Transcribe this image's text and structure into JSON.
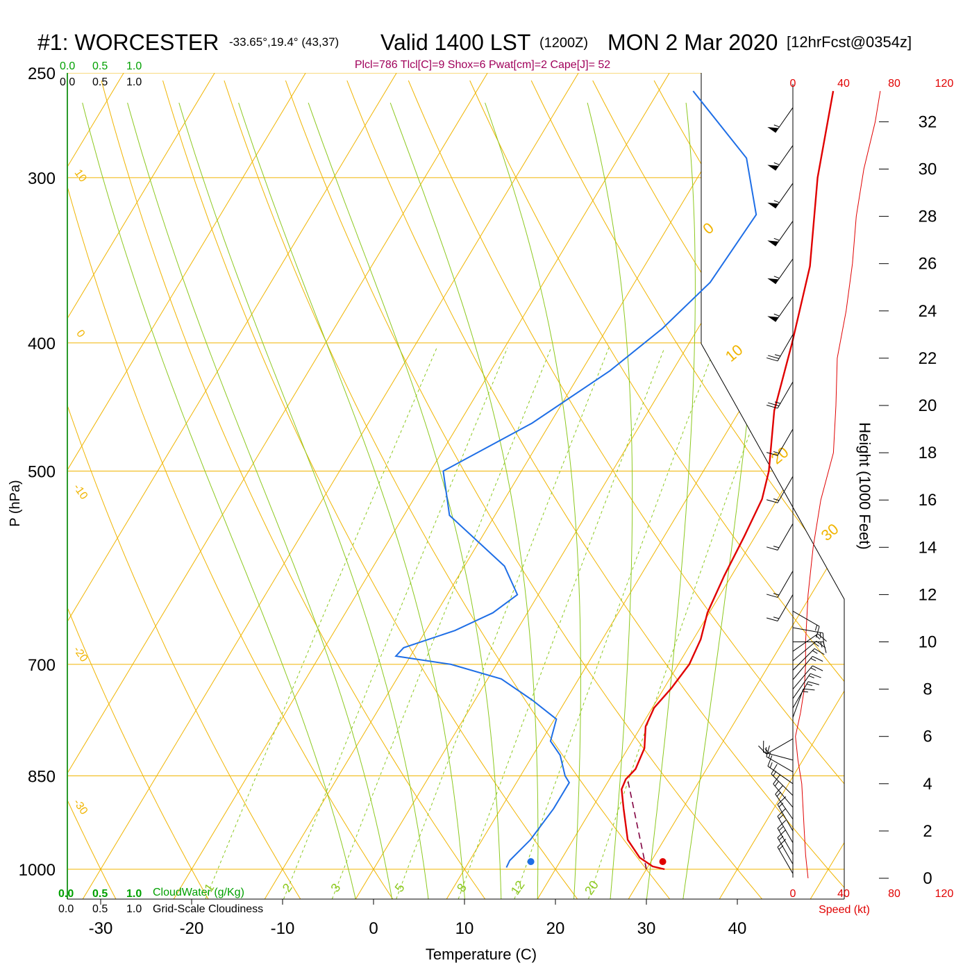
{
  "header": {
    "station": "#1: WORCESTER",
    "coords": "-33.65°,19.4° (43,37)",
    "valid": "Valid 1400 LST",
    "zulu": "(1200Z)",
    "date": "MON 2 Mar 2020",
    "forecast": "[12hrFcst@0354z]",
    "indices": "Plcl=786 Tlcl[C]=9 Shox=6 Pwat[cm]=2 Cape[J]= 52"
  },
  "scales": {
    "cloud_top_green": [
      "0.0",
      "0.5",
      "1.0"
    ],
    "cloud_top_black": [
      "0.0",
      "0.5",
      "1.0"
    ],
    "cloud_bottom_green": [
      "0.0",
      "0.5",
      "1.0"
    ],
    "cloud_bottom_black": [
      "0.0",
      "0.5",
      "1.0"
    ],
    "cloudwater_label": "CloudWater (g/Kg)",
    "cloudiness_label": "Grid-Scale Cloudiness",
    "speed_ticks_top": [
      "0",
      "40",
      "80",
      "120"
    ],
    "speed_ticks_bottom": [
      "0",
      "40",
      "80",
      "120"
    ],
    "speed_label": "Speed (kt)"
  },
  "colors": {
    "isotherm": "#f0b400",
    "adiabat": "#8cc81e",
    "mixing": "#8cc81e",
    "temperature": "#e00000",
    "dewpoint": "#1e6ee6",
    "parcel": "#800040",
    "indices": "#a0005a",
    "cloud": "#00a000",
    "speed": "#e00000"
  },
  "chart_data": {
    "type": "skew-t",
    "xlabel": "Temperature (C)",
    "ylabel": "P (hPa)",
    "height_axis_label": "Height (1000 Feet)",
    "pressure_ticks": [
      250,
      300,
      400,
      500,
      700,
      850,
      1000
    ],
    "pressure_tick_labels": [
      "250",
      "300",
      "400",
      "500",
      "700",
      "850",
      "1000"
    ],
    "temperature_ticks": [
      -30,
      -20,
      -10,
      0,
      10,
      20,
      30,
      40
    ],
    "temperature_tick_labels": [
      "-30",
      "-20",
      "-10",
      "0",
      "10",
      "20",
      "30",
      "40"
    ],
    "height_ticks_kft": [
      0,
      2,
      4,
      6,
      8,
      10,
      12,
      14,
      16,
      18,
      20,
      22,
      24,
      26,
      28,
      30,
      32
    ],
    "height_tick_labels": [
      "0",
      "2",
      "4",
      "6",
      "8",
      "10",
      "12",
      "14",
      "16",
      "18",
      "20",
      "22",
      "24",
      "26",
      "28",
      "30",
      "32"
    ],
    "isotherm_labels": [
      {
        "text": "10",
        "side": "left",
        "p": 300
      },
      {
        "text": "0",
        "side": "left",
        "p": 395
      },
      {
        "text": "-10",
        "side": "left",
        "p": 520
      },
      {
        "text": "-20",
        "side": "left",
        "p": 690
      },
      {
        "text": "-30",
        "side": "left",
        "p": 900
      },
      {
        "text": "0",
        "side": "right",
        "p": 330
      },
      {
        "text": "10",
        "side": "right",
        "p": 410
      },
      {
        "text": "20",
        "side": "right",
        "p": 490
      },
      {
        "text": "30",
        "side": "right",
        "p": 560
      }
    ],
    "mixing_ratio_labels": [
      "1",
      "2",
      "3",
      "5",
      "8",
      "12",
      "20"
    ],
    "mixing_ratio_values": [
      1,
      2,
      3,
      5,
      8,
      12,
      20
    ],
    "temperature_profile": [
      [
        1000,
        32.0
      ],
      [
        995,
        30.5
      ],
      [
        980,
        28.5
      ],
      [
        950,
        26.0
      ],
      [
        900,
        23.5
      ],
      [
        870,
        22.0
      ],
      [
        855,
        21.8
      ],
      [
        840,
        22.2
      ],
      [
        810,
        21.8
      ],
      [
        780,
        20.5
      ],
      [
        755,
        20.2
      ],
      [
        730,
        20.8
      ],
      [
        700,
        21.2
      ],
      [
        670,
        20.8
      ],
      [
        640,
        19.8
      ],
      [
        600,
        19.2
      ],
      [
        560,
        18.8
      ],
      [
        525,
        18.3
      ],
      [
        500,
        17.2
      ],
      [
        450,
        13.8
      ],
      [
        400,
        11.3
      ],
      [
        350,
        8.2
      ],
      [
        300,
        3.2
      ],
      [
        258,
        -0.8
      ]
    ],
    "dewpoint_profile": [
      [
        997,
        14.5
      ],
      [
        985,
        14.4
      ],
      [
        950,
        15.3
      ],
      [
        900,
        15.8
      ],
      [
        860,
        15.8
      ],
      [
        850,
        14.9
      ],
      [
        820,
        13.0
      ],
      [
        800,
        11.0
      ],
      [
        770,
        10.2
      ],
      [
        745,
        6.3
      ],
      [
        718,
        1.5
      ],
      [
        700,
        -5.0
      ],
      [
        690,
        -11.6
      ],
      [
        680,
        -11.3
      ],
      [
        660,
        -6.8
      ],
      [
        640,
        -3.8
      ],
      [
        620,
        -2.3
      ],
      [
        590,
        -5.6
      ],
      [
        540,
        -15.0
      ],
      [
        500,
        -18.6
      ],
      [
        460,
        -12.0
      ],
      [
        420,
        -6.9
      ],
      [
        390,
        -3.9
      ],
      [
        360,
        -1.7
      ],
      [
        320,
        -1.1
      ],
      [
        290,
        -5.9
      ],
      [
        258,
        -16.2
      ]
    ],
    "parcel_profile": [
      [
        1000,
        30.0
      ],
      [
        855,
        22.0
      ]
    ],
    "surface_temperature": 31.8,
    "surface_dewpoint": 17.3,
    "surface_marker_pressure": 1000,
    "wind_speed_profile": [
      [
        0,
        12
      ],
      [
        1,
        10
      ],
      [
        2,
        9
      ],
      [
        3,
        8
      ],
      [
        4,
        7
      ],
      [
        5,
        4
      ],
      [
        5.5,
        3
      ],
      [
        6,
        2
      ],
      [
        7,
        6
      ],
      [
        8,
        9
      ],
      [
        9,
        10
      ],
      [
        10,
        10
      ],
      [
        11,
        11
      ],
      [
        12,
        12
      ],
      [
        14,
        16
      ],
      [
        16,
        22
      ],
      [
        18,
        32
      ],
      [
        20,
        34
      ],
      [
        22,
        35
      ],
      [
        24,
        42
      ],
      [
        26,
        47
      ],
      [
        28,
        50
      ],
      [
        30,
        56
      ],
      [
        32,
        65
      ],
      [
        33.3,
        69
      ]
    ],
    "wind_barbs": [
      {
        "h": 0.2,
        "dir": 330,
        "spd": 15
      },
      {
        "h": 0.6,
        "dir": 330,
        "spd": 15
      },
      {
        "h": 1.0,
        "dir": 330,
        "spd": 15
      },
      {
        "h": 1.5,
        "dir": 330,
        "spd": 15
      },
      {
        "h": 2.0,
        "dir": 330,
        "spd": 15
      },
      {
        "h": 2.5,
        "dir": 325,
        "spd": 15
      },
      {
        "h": 3.0,
        "dir": 320,
        "spd": 15
      },
      {
        "h": 3.5,
        "dir": 315,
        "spd": 15
      },
      {
        "h": 4.0,
        "dir": 305,
        "spd": 15
      },
      {
        "h": 4.5,
        "dir": 300,
        "spd": 15
      },
      {
        "h": 5.0,
        "dir": 285,
        "spd": 15
      },
      {
        "h": 5.9,
        "dir": 240,
        "spd": 15
      },
      {
        "h": 6.8,
        "dir": 20,
        "spd": 15
      },
      {
        "h": 7.2,
        "dir": 30,
        "spd": 15
      },
      {
        "h": 7.6,
        "dir": 35,
        "spd": 15
      },
      {
        "h": 8.0,
        "dir": 40,
        "spd": 15
      },
      {
        "h": 8.4,
        "dir": 40,
        "spd": 15
      },
      {
        "h": 8.8,
        "dir": 45,
        "spd": 15
      },
      {
        "h": 9.2,
        "dir": 50,
        "spd": 15
      },
      {
        "h": 9.6,
        "dir": 55,
        "spd": 15
      },
      {
        "h": 10.0,
        "dir": 90,
        "spd": 15
      },
      {
        "h": 10.6,
        "dir": 100,
        "spd": 15
      },
      {
        "h": 11.3,
        "dir": 120,
        "spd": 15
      },
      {
        "h": 12.0,
        "dir": 210,
        "spd": 15
      },
      {
        "h": 13.0,
        "dir": 210,
        "spd": 15
      },
      {
        "h": 15.0,
        "dir": 210,
        "spd": 15
      },
      {
        "h": 17.0,
        "dir": 210,
        "spd": 15
      },
      {
        "h": 19.0,
        "dir": 210,
        "spd": 15
      },
      {
        "h": 21.0,
        "dir": 210,
        "spd": 25
      },
      {
        "h": 23.0,
        "dir": 210,
        "spd": 25
      },
      {
        "h": 24.6,
        "dir": 215,
        "spd": 55
      },
      {
        "h": 26.2,
        "dir": 215,
        "spd": 55
      },
      {
        "h": 27.8,
        "dir": 215,
        "spd": 55
      },
      {
        "h": 29.4,
        "dir": 215,
        "spd": 55
      },
      {
        "h": 31.0,
        "dir": 215,
        "spd": 55
      },
      {
        "h": 32.6,
        "dir": 215,
        "spd": 55
      }
    ]
  }
}
